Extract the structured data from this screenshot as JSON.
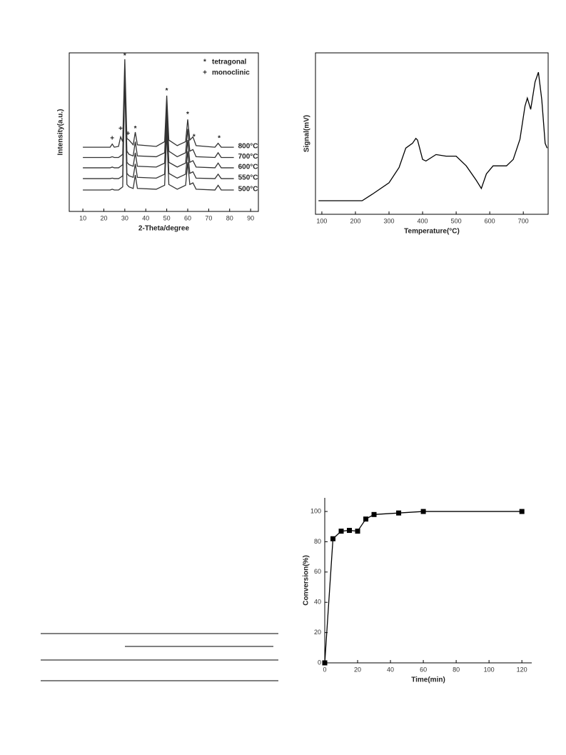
{
  "chart_data": [
    {
      "type": "line",
      "xlabel": "2-Theta/degree",
      "ylabel": "Intensity(a.u.)",
      "xlim": [
        3.5,
        93.7
      ],
      "xticks": [
        10,
        20,
        30,
        40,
        50,
        60,
        70,
        80,
        90
      ],
      "ylim": [
        0,
        100
      ],
      "x": [
        10,
        23,
        24,
        25,
        27,
        28,
        29,
        30,
        31,
        32,
        34,
        35,
        36,
        45,
        49,
        50,
        51,
        55,
        59,
        60,
        61,
        62.5,
        64,
        73,
        74.5,
        76,
        82
      ],
      "legend": [
        {
          "symbol": "*",
          "label": "tetragonal"
        },
        {
          "symbol": "+",
          "label": "monoclinic"
        }
      ],
      "annotations": [
        {
          "text": "*",
          "x": 30,
          "y": 98
        },
        {
          "text": "+",
          "x": 24,
          "y": 46
        },
        {
          "text": "+",
          "x": 28,
          "y": 52
        },
        {
          "text": "+",
          "x": 31.5,
          "y": 49
        },
        {
          "text": "*",
          "x": 35,
          "y": 52
        },
        {
          "text": "*",
          "x": 50,
          "y": 76
        },
        {
          "text": "*",
          "x": 60,
          "y": 61
        },
        {
          "text": "*",
          "x": 63,
          "y": 47
        },
        {
          "text": "*",
          "x": 75,
          "y": 46
        }
      ],
      "series": [
        {
          "name": "800°C",
          "color": "#333333",
          "values": [
            40.5,
            40.5,
            42.5,
            40.5,
            41,
            47,
            44,
            96,
            46,
            45,
            42,
            50,
            42,
            41,
            44,
            73,
            45,
            41.5,
            44,
            58,
            45,
            47,
            41.5,
            40.5,
            43,
            40.5,
            40.5
          ]
        },
        {
          "name": "700°C",
          "color": "#333333",
          "values": [
            34,
            34,
            34.5,
            34,
            34,
            35,
            36,
            90,
            38,
            36,
            35,
            44,
            35,
            34.5,
            37,
            68,
            38,
            34.5,
            37,
            52,
            38,
            39,
            34.5,
            34,
            37,
            34,
            34
          ]
        },
        {
          "name": "600°C",
          "color": "#333333",
          "values": [
            27.5,
            27.5,
            28,
            27.5,
            27.5,
            28.5,
            29.5,
            88,
            31,
            29.5,
            28.5,
            37,
            28.5,
            28,
            30.5,
            62,
            31,
            28,
            30.5,
            45,
            31,
            32,
            28,
            27.5,
            30.5,
            27.5,
            27.5
          ]
        },
        {
          "name": "550°C",
          "color": "#333333",
          "values": [
            20.7,
            20.7,
            21,
            20.7,
            20.7,
            21.5,
            22.5,
            86,
            24,
            22.5,
            21.5,
            30,
            21.5,
            21,
            23.5,
            56,
            24,
            21,
            23.5,
            38,
            24,
            25,
            21,
            20.7,
            23.5,
            20.7,
            20.7
          ]
        },
        {
          "name": "500°C",
          "color": "#333333",
          "values": [
            13.5,
            13.5,
            14,
            13.5,
            13.5,
            14.5,
            15.5,
            84,
            17,
            15.5,
            14.5,
            23,
            14.5,
            14,
            16.5,
            50,
            17,
            14,
            16.5,
            31,
            17,
            18,
            14,
            13.5,
            16.5,
            13.5,
            13.5
          ]
        }
      ]
    },
    {
      "type": "line",
      "xlabel": "Temperature(°C)",
      "ylabel": "Signal(mV)",
      "xlim": [
        81,
        774
      ],
      "xticks": [
        100,
        200,
        300,
        400,
        500,
        600,
        700
      ],
      "ylim": [
        0,
        100
      ],
      "x": [
        90,
        220,
        250,
        300,
        330,
        350,
        370,
        380,
        385,
        400,
        410,
        440,
        470,
        500,
        530,
        560,
        575,
        590,
        610,
        630,
        650,
        670,
        690,
        705,
        712,
        722,
        735,
        745,
        755,
        765,
        771
      ],
      "series": [
        {
          "color": "#000000",
          "values": [
            8.4,
            8.4,
            12.4,
            19.5,
            29,
            41,
            44,
            47,
            46,
            34,
            33,
            37,
            36,
            36,
            30,
            21,
            16,
            25,
            30,
            30,
            30,
            34,
            46.5,
            67,
            72,
            65,
            82,
            88,
            71,
            44,
            41
          ]
        }
      ]
    },
    {
      "type": "line",
      "xlabel": "Time(min)",
      "ylabel": "Conversion(%)",
      "marker": "square",
      "xlim": [
        0,
        126
      ],
      "xticks": [
        0,
        20,
        40,
        60,
        80,
        100,
        120
      ],
      "ylim": [
        0,
        109
      ],
      "yticks": [
        0,
        20,
        40,
        60,
        80,
        100
      ],
      "x": [
        0,
        5,
        10,
        15,
        20,
        25,
        30,
        45,
        60,
        120
      ],
      "series": [
        {
          "color": "#000000",
          "values": [
            0,
            82,
            87,
            87.5,
            87,
            95,
            98,
            99,
            100,
            100
          ]
        }
      ]
    }
  ]
}
